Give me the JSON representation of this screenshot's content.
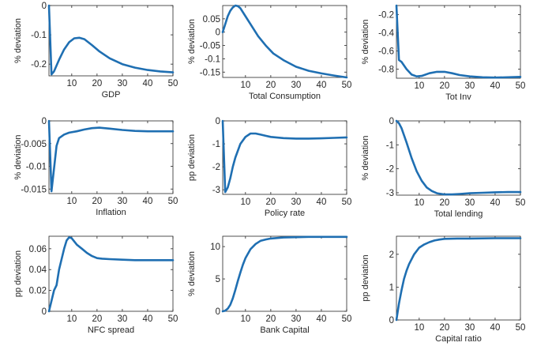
{
  "chart_data": [
    {
      "type": "line",
      "title": "",
      "xlabel": "GDP",
      "ylabel": "% deviation",
      "xlim": [
        1,
        50
      ],
      "ylim": [
        -0.24,
        0
      ],
      "grid": false,
      "xticks": [
        10,
        20,
        30,
        40,
        50
      ],
      "yticks": [
        -0.2,
        -0.1,
        0
      ],
      "xtick_labels": [
        "10",
        "20",
        "30",
        "40",
        "50"
      ],
      "ytick_labels": [
        "-0.2",
        "-0.1",
        "0"
      ],
      "series": [
        {
          "color": "#1f6fb2",
          "x": [
            1,
            2,
            3,
            5,
            7,
            9,
            11,
            13,
            15,
            18,
            21,
            25,
            30,
            35,
            40,
            45,
            50
          ],
          "y": [
            0,
            -0.235,
            -0.225,
            -0.185,
            -0.15,
            -0.125,
            -0.112,
            -0.11,
            -0.115,
            -0.135,
            -0.157,
            -0.18,
            -0.2,
            -0.212,
            -0.22,
            -0.225,
            -0.228
          ]
        }
      ]
    },
    {
      "type": "line",
      "title": "",
      "xlabel": "Total Consumption",
      "ylabel": "% deviation",
      "xlim": [
        1,
        50
      ],
      "ylim": [
        -0.17,
        0.1
      ],
      "grid": false,
      "xticks": [
        10,
        20,
        30,
        40,
        50
      ],
      "yticks": [
        -0.15,
        -0.1,
        -0.05,
        0,
        0.05
      ],
      "xtick_labels": [
        "10",
        "20",
        "30",
        "40",
        "50"
      ],
      "ytick_labels": [
        "-0.15",
        "-0.1",
        "-0.05",
        "0",
        "0.05"
      ],
      "series": [
        {
          "color": "#1f6fb2",
          "x": [
            1,
            2,
            3,
            4,
            5,
            6,
            7,
            8,
            10,
            12,
            15,
            18,
            21,
            25,
            30,
            35,
            40,
            45,
            50
          ],
          "y": [
            0.0,
            0.03,
            0.06,
            0.08,
            0.093,
            0.1,
            0.098,
            0.09,
            0.06,
            0.03,
            -0.015,
            -0.05,
            -0.08,
            -0.105,
            -0.13,
            -0.145,
            -0.155,
            -0.163,
            -0.17
          ]
        }
      ]
    },
    {
      "type": "line",
      "title": "",
      "xlabel": "Tot Inv",
      "ylabel": "% deviation",
      "xlim": [
        1,
        50
      ],
      "ylim": [
        -0.9,
        -0.1
      ],
      "grid": false,
      "xticks": [
        10,
        20,
        30,
        40,
        50
      ],
      "yticks": [
        -0.8,
        -0.6,
        -0.4,
        -0.2
      ],
      "xtick_labels": [
        "10",
        "20",
        "30",
        "40",
        "50"
      ],
      "ytick_labels": [
        "-0.8",
        "-0.6",
        "-0.4",
        "-0.2"
      ],
      "series": [
        {
          "color": "#1f6fb2",
          "x": [
            1,
            2,
            3,
            5,
            7,
            9,
            11,
            14,
            17,
            20,
            23,
            26,
            30,
            35,
            40,
            45,
            50
          ],
          "y": [
            -0.1,
            -0.7,
            -0.72,
            -0.8,
            -0.86,
            -0.88,
            -0.875,
            -0.845,
            -0.83,
            -0.83,
            -0.845,
            -0.865,
            -0.88,
            -0.89,
            -0.893,
            -0.89,
            -0.885
          ]
        }
      ]
    },
    {
      "type": "line",
      "title": "",
      "xlabel": "Inflation",
      "ylabel": "% deviation",
      "xlim": [
        1,
        50
      ],
      "ylim": [
        -0.016,
        0
      ],
      "grid": false,
      "xticks": [
        10,
        20,
        30,
        40,
        50
      ],
      "yticks": [
        -0.015,
        -0.01,
        -0.005,
        0
      ],
      "xtick_labels": [
        "10",
        "20",
        "30",
        "40",
        "50"
      ],
      "ytick_labels": [
        "-0.015",
        "-0.01",
        "-0.005",
        "0"
      ],
      "series": [
        {
          "color": "#1f6fb2",
          "x": [
            1,
            2,
            3,
            4,
            5,
            7,
            9,
            12,
            15,
            18,
            21,
            25,
            30,
            35,
            40,
            45,
            50
          ],
          "y": [
            0,
            -0.0155,
            -0.0105,
            -0.0055,
            -0.0038,
            -0.003,
            -0.0026,
            -0.0023,
            -0.0019,
            -0.0016,
            -0.0015,
            -0.0017,
            -0.002,
            -0.0022,
            -0.0023,
            -0.0023,
            -0.0023
          ]
        }
      ]
    },
    {
      "type": "line",
      "title": "",
      "xlabel": "Policy rate",
      "ylabel": "pp deviation",
      "xlim": [
        1,
        50
      ],
      "ylim": [
        -3.2,
        0
      ],
      "grid": false,
      "xticks": [
        10,
        20,
        30,
        40,
        50
      ],
      "yticks": [
        -3,
        -2,
        -1,
        0
      ],
      "xtick_labels": [
        "10",
        "20",
        "30",
        "40",
        "50"
      ],
      "ytick_labels": [
        "-3",
        "-2",
        "-1",
        "0"
      ],
      "series": [
        {
          "color": "#1f6fb2",
          "x": [
            1,
            2,
            3,
            4,
            5,
            6,
            8,
            10,
            12,
            14,
            16,
            18,
            20,
            25,
            30,
            35,
            40,
            45,
            50
          ],
          "y": [
            0,
            -3.1,
            -2.9,
            -2.5,
            -2.0,
            -1.6,
            -1.0,
            -0.7,
            -0.55,
            -0.55,
            -0.6,
            -0.65,
            -0.7,
            -0.75,
            -0.77,
            -0.77,
            -0.76,
            -0.74,
            -0.72
          ]
        }
      ]
    },
    {
      "type": "line",
      "title": "",
      "xlabel": "Total lending",
      "ylabel": "% deviation",
      "xlim": [
        1,
        50
      ],
      "ylim": [
        -3.1,
        0
      ],
      "grid": false,
      "xticks": [
        10,
        20,
        30,
        40,
        50
      ],
      "yticks": [
        -3,
        -2,
        -1,
        0
      ],
      "xtick_labels": [
        "10",
        "20",
        "30",
        "40",
        "50"
      ],
      "ytick_labels": [
        "-3",
        "-2",
        "-1",
        "0"
      ],
      "series": [
        {
          "color": "#1f6fb2",
          "x": [
            1,
            2,
            3,
            5,
            7,
            9,
            11,
            13,
            15,
            17,
            20,
            23,
            26,
            30,
            35,
            40,
            45,
            50
          ],
          "y": [
            0,
            -0.1,
            -0.3,
            -0.9,
            -1.55,
            -2.1,
            -2.5,
            -2.78,
            -2.93,
            -3.02,
            -3.07,
            -3.07,
            -3.05,
            -3.02,
            -3.0,
            -2.98,
            -2.97,
            -2.97
          ]
        }
      ]
    },
    {
      "type": "line",
      "title": "",
      "xlabel": "NFC spread",
      "ylabel": "pp deviation",
      "xlim": [
        1,
        50
      ],
      "ylim": [
        0,
        0.072
      ],
      "grid": false,
      "xticks": [
        10,
        20,
        30,
        40,
        50
      ],
      "yticks": [
        0,
        0.02,
        0.04,
        0.06
      ],
      "xtick_labels": [
        "10",
        "20",
        "30",
        "40",
        "50"
      ],
      "ytick_labels": [
        "0",
        "0.02",
        "0.04",
        "0.06"
      ],
      "series": [
        {
          "color": "#1f6fb2",
          "x": [
            1,
            2,
            3,
            4,
            5,
            6,
            7,
            8,
            9,
            10,
            11,
            12,
            14,
            16,
            18,
            20,
            22,
            25,
            30,
            35,
            40,
            45,
            50
          ],
          "y": [
            0,
            0.01,
            0.02,
            0.025,
            0.04,
            0.05,
            0.06,
            0.068,
            0.071,
            0.07,
            0.067,
            0.064,
            0.06,
            0.056,
            0.053,
            0.051,
            0.0505,
            0.05,
            0.0495,
            0.049,
            0.049,
            0.049,
            0.049
          ]
        }
      ]
    },
    {
      "type": "line",
      "title": "",
      "xlabel": "Bank Capital",
      "ylabel": "% deviation",
      "xlim": [
        1,
        50
      ],
      "ylim": [
        0,
        11.6
      ],
      "grid": false,
      "xticks": [
        10,
        20,
        30,
        40,
        50
      ],
      "yticks": [
        0,
        5,
        10
      ],
      "xtick_labels": [
        "10",
        "20",
        "30",
        "40",
        "50"
      ],
      "ytick_labels": [
        "0",
        "5",
        "10"
      ],
      "series": [
        {
          "color": "#1f6fb2",
          "x": [
            1,
            2,
            3,
            4,
            5,
            6,
            7,
            8,
            9,
            10,
            12,
            14,
            16,
            18,
            20,
            25,
            30,
            35,
            40,
            45,
            50
          ],
          "y": [
            0,
            0.1,
            0.4,
            1.0,
            2.0,
            3.3,
            4.7,
            6.0,
            7.2,
            8.2,
            9.6,
            10.4,
            10.9,
            11.1,
            11.25,
            11.4,
            11.45,
            11.5,
            11.5,
            11.5,
            11.5
          ]
        }
      ]
    },
    {
      "type": "line",
      "title": "",
      "xlabel": "Capital ratio",
      "ylabel": "pp deviation",
      "xlim": [
        1,
        50
      ],
      "ylim": [
        0,
        2.55
      ],
      "grid": false,
      "xticks": [
        10,
        20,
        30,
        40,
        50
      ],
      "yticks": [
        0,
        1,
        2
      ],
      "xtick_labels": [
        "10",
        "20",
        "30",
        "40",
        "50"
      ],
      "ytick_labels": [
        "0",
        "1",
        "2"
      ],
      "series": [
        {
          "color": "#1f6fb2",
          "x": [
            1,
            2,
            3,
            4,
            5,
            6,
            8,
            10,
            12,
            14,
            16,
            18,
            20,
            25,
            30,
            40,
            50
          ],
          "y": [
            0,
            0.5,
            0.9,
            1.25,
            1.5,
            1.7,
            2.0,
            2.2,
            2.3,
            2.37,
            2.42,
            2.45,
            2.47,
            2.48,
            2.48,
            2.49,
            2.49
          ]
        }
      ]
    }
  ]
}
